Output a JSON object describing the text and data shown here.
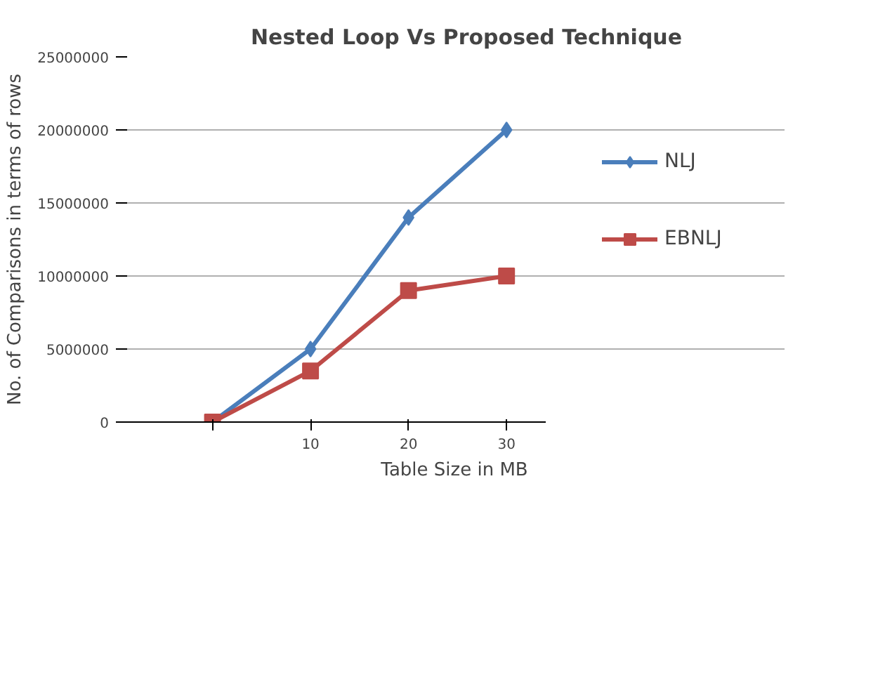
{
  "chart_data": {
    "type": "line",
    "title": "Nested Loop Vs Proposed Technique",
    "xlabel": "Table Size in MB",
    "ylabel": "No. of Comparisons in terms of rows",
    "categories": [
      null,
      "10",
      "20",
      "30"
    ],
    "series": [
      {
        "name": "NLJ",
        "color": "#4a7ebb",
        "marker": "diamond",
        "values": [
          0,
          5000000,
          14000000,
          20000000
        ]
      },
      {
        "name": "EBNLJ",
        "color": "#be4b48",
        "marker": "square",
        "values": [
          0,
          3500000,
          9000000,
          10000000
        ]
      }
    ],
    "ylim": [
      0,
      25000000
    ],
    "yticks": [
      0,
      5000000,
      10000000,
      15000000,
      20000000,
      25000000
    ],
    "grid": "y",
    "legend": "right"
  }
}
